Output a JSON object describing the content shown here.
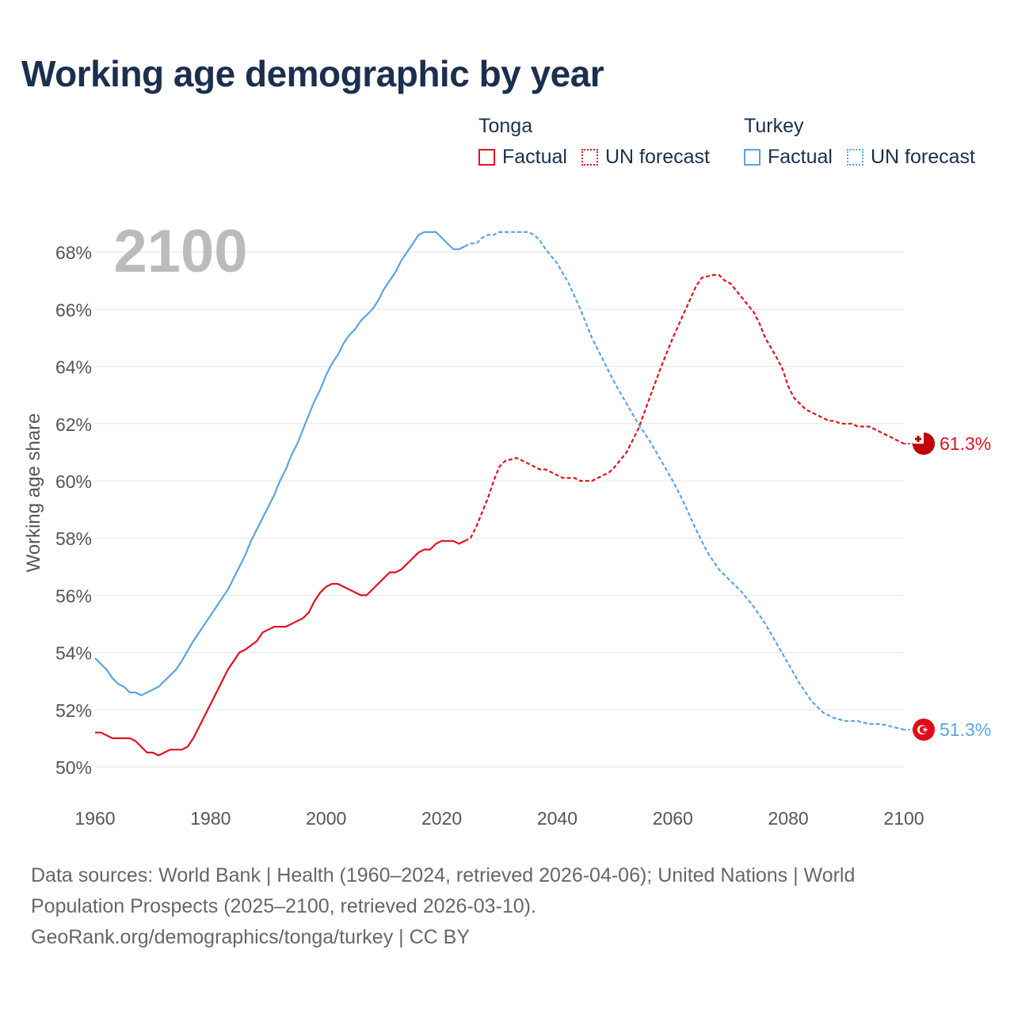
{
  "colors": {
    "tonga": "#e3101d",
    "turkey": "#5ba4e2",
    "grid": "#e6e6e6",
    "axis_text": "#555555",
    "title": "#1b2f4e",
    "year_watermark": "#bbbbbb"
  },
  "header": {
    "title": "Working age demographic by year"
  },
  "legend": {
    "groups": [
      {
        "name": "Tonga",
        "factual_label": "Factual",
        "forecast_label": "UN forecast"
      },
      {
        "name": "Turkey",
        "factual_label": "Factual",
        "forecast_label": "UN forecast"
      }
    ]
  },
  "footer": {
    "line1": "Data sources: World Bank | Health (1960–2024, retrieved 2026-04-06); United Nations | World",
    "line2": "Population Prospects (2025–2100, retrieved 2026-03-10).",
    "line3": "GeoRank.org/demographics/tonga/turkey | CC BY"
  },
  "chart_data": {
    "type": "line",
    "title": "Working age demographic by year",
    "ylabel": "Working age share",
    "xlabel": "",
    "xlim": [
      1960,
      2100
    ],
    "ylim": [
      50,
      69
    ],
    "x_ticks": [
      1960,
      1980,
      2000,
      2020,
      2040,
      2060,
      2080,
      2100
    ],
    "y_ticks": [
      50,
      52,
      54,
      56,
      58,
      60,
      62,
      64,
      66,
      68
    ],
    "x_tick_labels": [
      "1960",
      "1980",
      "2000",
      "2020",
      "2040",
      "2060",
      "2080",
      "2100"
    ],
    "y_tick_labels": [
      "50%",
      "52%",
      "54%",
      "56%",
      "58%",
      "60%",
      "62%",
      "64%",
      "66%",
      "68%"
    ],
    "current_year_label": "2100",
    "factual_end_year": 2024,
    "grid": true,
    "series": [
      {
        "name": "Tonga",
        "color": "#e3101d",
        "end_label": "61.3%",
        "flag_icon": "tonga-flag-icon",
        "points": [
          [
            1960,
            51.2
          ],
          [
            1961,
            51.2
          ],
          [
            1963,
            51.0
          ],
          [
            1965,
            51.0
          ],
          [
            1966,
            51.0
          ],
          [
            1967,
            50.9
          ],
          [
            1969,
            50.5
          ],
          [
            1970,
            50.5
          ],
          [
            1971,
            50.4
          ],
          [
            1973,
            50.6
          ],
          [
            1975,
            50.6
          ],
          [
            1976,
            50.7
          ],
          [
            1977,
            51.0
          ],
          [
            1980,
            52.2
          ],
          [
            1982,
            53.0
          ],
          [
            1983,
            53.4
          ],
          [
            1985,
            54.0
          ],
          [
            1986,
            54.1
          ],
          [
            1988,
            54.4
          ],
          [
            1989,
            54.7
          ],
          [
            1991,
            54.9
          ],
          [
            1993,
            54.9
          ],
          [
            1996,
            55.2
          ],
          [
            1997,
            55.4
          ],
          [
            1998,
            55.8
          ],
          [
            1999,
            56.1
          ],
          [
            2000,
            56.3
          ],
          [
            2001,
            56.4
          ],
          [
            2002,
            56.4
          ],
          [
            2004,
            56.2
          ],
          [
            2006,
            56.0
          ],
          [
            2007,
            56.0
          ],
          [
            2009,
            56.4
          ],
          [
            2011,
            56.8
          ],
          [
            2012,
            56.8
          ],
          [
            2013,
            56.9
          ],
          [
            2015,
            57.3
          ],
          [
            2016,
            57.5
          ],
          [
            2017,
            57.6
          ],
          [
            2018,
            57.6
          ],
          [
            2019,
            57.8
          ],
          [
            2020,
            57.9
          ],
          [
            2022,
            57.9
          ],
          [
            2023,
            57.8
          ],
          [
            2024,
            57.9
          ],
          [
            2025,
            58.0
          ],
          [
            2026,
            58.4
          ],
          [
            2027,
            58.9
          ],
          [
            2028,
            59.4
          ],
          [
            2029,
            60.0
          ],
          [
            2030,
            60.5
          ],
          [
            2031,
            60.7
          ],
          [
            2033,
            60.8
          ],
          [
            2035,
            60.6
          ],
          [
            2037,
            60.4
          ],
          [
            2038,
            60.4
          ],
          [
            2040,
            60.2
          ],
          [
            2041,
            60.1
          ],
          [
            2043,
            60.1
          ],
          [
            2044,
            60.0
          ],
          [
            2046,
            60.0
          ],
          [
            2048,
            60.2
          ],
          [
            2049,
            60.3
          ],
          [
            2050,
            60.5
          ],
          [
            2052,
            61.0
          ],
          [
            2054,
            61.8
          ],
          [
            2056,
            62.9
          ],
          [
            2058,
            64.0
          ],
          [
            2060,
            65.0
          ],
          [
            2062,
            65.9
          ],
          [
            2064,
            66.8
          ],
          [
            2065,
            67.1
          ],
          [
            2067,
            67.2
          ],
          [
            2068,
            67.2
          ],
          [
            2069,
            67.0
          ],
          [
            2070,
            66.9
          ],
          [
            2072,
            66.4
          ],
          [
            2074,
            65.9
          ],
          [
            2075,
            65.5
          ],
          [
            2076,
            65.0
          ],
          [
            2078,
            64.3
          ],
          [
            2079,
            63.9
          ],
          [
            2080,
            63.3
          ],
          [
            2081,
            62.9
          ],
          [
            2083,
            62.5
          ],
          [
            2085,
            62.3
          ],
          [
            2087,
            62.1
          ],
          [
            2088,
            62.1
          ],
          [
            2089,
            62.0
          ],
          [
            2091,
            62.0
          ],
          [
            2092,
            61.9
          ],
          [
            2094,
            61.9
          ],
          [
            2096,
            61.7
          ],
          [
            2098,
            61.5
          ],
          [
            2099,
            61.4
          ],
          [
            2100,
            61.3
          ]
        ]
      },
      {
        "name": "Turkey",
        "color": "#5ba4e2",
        "end_label": "51.3%",
        "flag_icon": "turkey-flag-icon",
        "points": [
          [
            1960,
            53.8
          ],
          [
            1962,
            53.4
          ],
          [
            1963,
            53.1
          ],
          [
            1964,
            52.9
          ],
          [
            1965,
            52.8
          ],
          [
            1966,
            52.6
          ],
          [
            1967,
            52.6
          ],
          [
            1968,
            52.5
          ],
          [
            1969,
            52.6
          ],
          [
            1971,
            52.8
          ],
          [
            1972,
            53.0
          ],
          [
            1974,
            53.4
          ],
          [
            1975,
            53.7
          ],
          [
            1977,
            54.4
          ],
          [
            1979,
            55.0
          ],
          [
            1980,
            55.3
          ],
          [
            1982,
            55.9
          ],
          [
            1983,
            56.2
          ],
          [
            1984,
            56.6
          ],
          [
            1986,
            57.4
          ],
          [
            1987,
            57.9
          ],
          [
            1989,
            58.7
          ],
          [
            1991,
            59.5
          ],
          [
            1992,
            60.0
          ],
          [
            1993,
            60.4
          ],
          [
            1994,
            60.9
          ],
          [
            1995,
            61.3
          ],
          [
            1996,
            61.8
          ],
          [
            1997,
            62.3
          ],
          [
            1998,
            62.8
          ],
          [
            1999,
            63.2
          ],
          [
            2000,
            63.7
          ],
          [
            2001,
            64.1
          ],
          [
            2002,
            64.4
          ],
          [
            2003,
            64.8
          ],
          [
            2004,
            65.1
          ],
          [
            2005,
            65.3
          ],
          [
            2006,
            65.6
          ],
          [
            2007,
            65.8
          ],
          [
            2008,
            66.0
          ],
          [
            2009,
            66.3
          ],
          [
            2010,
            66.7
          ],
          [
            2011,
            67.0
          ],
          [
            2012,
            67.3
          ],
          [
            2013,
            67.7
          ],
          [
            2014,
            68.0
          ],
          [
            2015,
            68.3
          ],
          [
            2016,
            68.6
          ],
          [
            2017,
            68.7
          ],
          [
            2019,
            68.7
          ],
          [
            2020,
            68.5
          ],
          [
            2021,
            68.3
          ],
          [
            2022,
            68.1
          ],
          [
            2023,
            68.1
          ],
          [
            2024,
            68.2
          ],
          [
            2025,
            68.3
          ],
          [
            2026,
            68.3
          ],
          [
            2027,
            68.5
          ],
          [
            2028,
            68.6
          ],
          [
            2029,
            68.6
          ],
          [
            2030,
            68.7
          ],
          [
            2035,
            68.7
          ],
          [
            2036,
            68.6
          ],
          [
            2037,
            68.4
          ],
          [
            2038,
            68.1
          ],
          [
            2040,
            67.6
          ],
          [
            2042,
            66.9
          ],
          [
            2044,
            66.0
          ],
          [
            2046,
            65.0
          ],
          [
            2048,
            64.2
          ],
          [
            2050,
            63.4
          ],
          [
            2052,
            62.7
          ],
          [
            2054,
            62.0
          ],
          [
            2056,
            61.4
          ],
          [
            2058,
            60.7
          ],
          [
            2060,
            60.0
          ],
          [
            2062,
            59.2
          ],
          [
            2064,
            58.3
          ],
          [
            2066,
            57.5
          ],
          [
            2068,
            56.9
          ],
          [
            2070,
            56.5
          ],
          [
            2072,
            56.1
          ],
          [
            2074,
            55.6
          ],
          [
            2076,
            55.0
          ],
          [
            2078,
            54.3
          ],
          [
            2080,
            53.6
          ],
          [
            2082,
            52.9
          ],
          [
            2084,
            52.3
          ],
          [
            2086,
            51.9
          ],
          [
            2088,
            51.7
          ],
          [
            2090,
            51.6
          ],
          [
            2092,
            51.6
          ],
          [
            2094,
            51.5
          ],
          [
            2096,
            51.5
          ],
          [
            2098,
            51.4
          ],
          [
            2100,
            51.3
          ]
        ]
      }
    ]
  }
}
